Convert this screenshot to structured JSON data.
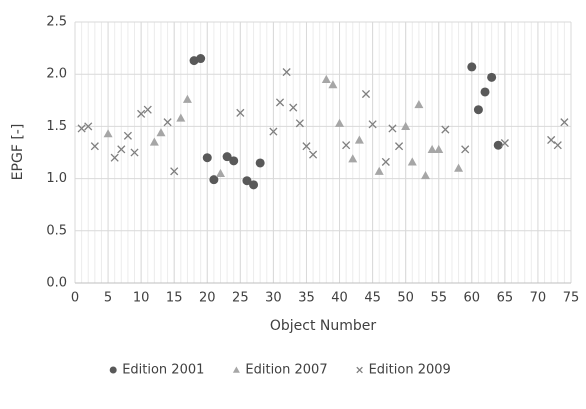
{
  "chart_data": {
    "type": "scatter",
    "x_label": "Object Number",
    "y_label": "EPGF [-]",
    "xlim": [
      0,
      75
    ],
    "xticks": [
      0,
      5,
      10,
      15,
      20,
      25,
      30,
      35,
      40,
      45,
      50,
      55,
      60,
      65,
      70,
      75
    ],
    "ylim": [
      0,
      2.5
    ],
    "yticks": [
      {
        "value": 0,
        "label": "0.0"
      },
      {
        "value": 0.5,
        "label": "0.5"
      },
      {
        "value": 1,
        "label": "1.0"
      },
      {
        "value": 1.5,
        "label": "1.5"
      },
      {
        "value": 2,
        "label": "2.0"
      },
      {
        "value": 2.5,
        "label": "2.5"
      }
    ],
    "grid": true,
    "legend": "bottom",
    "series": [
      {
        "name": "Edition 2001",
        "color": "#595959",
        "marker": "circle",
        "x": [
          18,
          19,
          20,
          21,
          23,
          24,
          26,
          27,
          28,
          60,
          61,
          62,
          63,
          64
        ],
        "values": [
          2.13,
          2.15,
          1.2,
          0.99,
          1.21,
          1.17,
          0.98,
          0.94,
          1.15,
          2.07,
          1.66,
          1.83,
          1.97,
          1.32
        ]
      },
      {
        "name": "Edition 2007",
        "color": "#a6a6a6",
        "marker": "triangle",
        "x": [
          5,
          12,
          13,
          16,
          17,
          22,
          38,
          39,
          40,
          42,
          43,
          46,
          50,
          51,
          52,
          53,
          54,
          55,
          58
        ],
        "values": [
          1.43,
          1.35,
          1.44,
          1.58,
          1.76,
          1.05,
          1.95,
          1.9,
          1.53,
          1.19,
          1.37,
          1.07,
          1.5,
          1.16,
          1.71,
          1.03,
          1.28,
          1.28,
          1.1
        ]
      },
      {
        "name": "Edition 2009",
        "color": "#7f7f7f",
        "marker": "cross",
        "x": [
          1,
          2,
          3,
          6,
          7,
          8,
          9,
          10,
          11,
          14,
          15,
          25,
          30,
          31,
          32,
          33,
          34,
          35,
          36,
          41,
          44,
          45,
          47,
          48,
          49,
          56,
          59,
          65,
          72,
          73,
          74
        ],
        "values": [
          1.48,
          1.5,
          1.31,
          1.2,
          1.28,
          1.41,
          1.25,
          1.62,
          1.66,
          1.54,
          1.07,
          1.63,
          1.45,
          1.73,
          2.02,
          1.68,
          1.53,
          1.31,
          1.23,
          1.32,
          1.81,
          1.52,
          1.16,
          1.48,
          1.31,
          1.47,
          1.28,
          1.34,
          1.37,
          1.32,
          1.54
        ]
      }
    ]
  }
}
